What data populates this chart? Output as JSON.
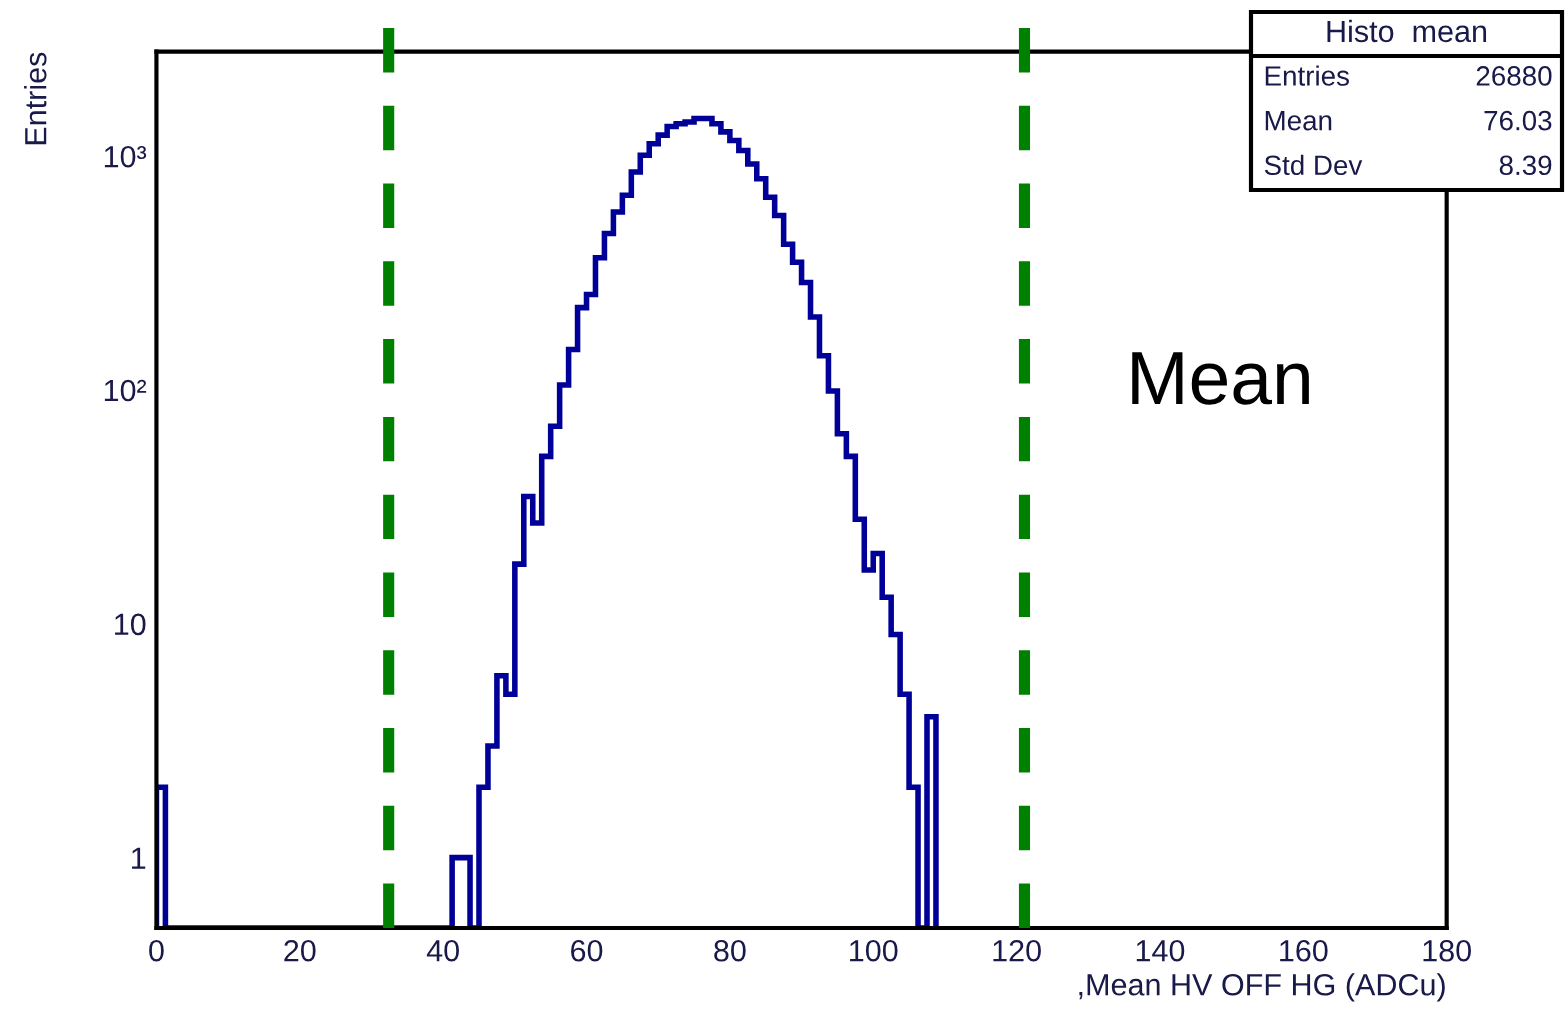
{
  "chart_data": {
    "type": "histogram",
    "xlabel": ",Mean HV OFF HG (ADCu)",
    "ylabel": "Entries",
    "bins": [
      0,
      1.25,
      2.5,
      3.75,
      5,
      6.25,
      7.5,
      8.75,
      10,
      11.25,
      12.5,
      13.75,
      15,
      16.25,
      17.5,
      18.75,
      20,
      21.25,
      22.5,
      23.75,
      25,
      26.25,
      27.5,
      28.75,
      30,
      31.25,
      32.5,
      33.75,
      35,
      36.25,
      37.5,
      38.75,
      40,
      41.25,
      42.5,
      43.75,
      45,
      46.25,
      47.5,
      48.75,
      50,
      51.25,
      52.5,
      53.75,
      55,
      56.25,
      57.5,
      58.75,
      60,
      61.25,
      62.5,
      63.75,
      65,
      66.25,
      67.5,
      68.75,
      70,
      71.25,
      72.5,
      73.75,
      75,
      76.25,
      77.5,
      78.75,
      80,
      81.25,
      82.5,
      83.75,
      85,
      86.25,
      87.5,
      88.75,
      90,
      91.25,
      92.5,
      93.75,
      95,
      96.25,
      97.5,
      98.75,
      100,
      101.25,
      102.5,
      103.75,
      105,
      106.25,
      107.5,
      108.75
    ],
    "values": [
      2,
      null,
      null,
      null,
      null,
      null,
      null,
      null,
      null,
      null,
      null,
      null,
      null,
      null,
      null,
      null,
      null,
      null,
      null,
      null,
      null,
      null,
      null,
      null,
      null,
      null,
      null,
      null,
      null,
      null,
      null,
      null,
      null,
      1,
      1,
      null,
      2,
      3,
      6,
      5,
      18,
      35,
      27,
      52,
      70,
      105,
      149,
      225,
      256,
      368,
      467,
      577,
      680,
      855,
      1010,
      1130,
      1230,
      1340,
      1375,
      1400,
      1450,
      1450,
      1375,
      1270,
      1167,
      1057,
      926,
      801,
      667,
      558,
      420,
      352,
      288,
      205,
      140,
      99,
      65,
      52,
      28,
      17,
      20,
      13,
      9,
      5,
      2,
      null,
      4
    ],
    "color": "#000099",
    "log": "y",
    "xlim": [
      0,
      180
    ],
    "xticks": [
      0,
      20,
      40,
      60,
      80,
      100,
      120,
      140,
      160,
      180
    ],
    "ylim": [
      0.5,
      2800
    ],
    "yticks": [
      1,
      10,
      {
        "value": 100,
        "label": "10²"
      },
      {
        "value": 1000,
        "label": "10³"
      }
    ],
    "grid": false,
    "legend": false,
    "ref_lines": [
      {
        "axis": "x",
        "value": 32.4,
        "label": null,
        "color": "#008000",
        "line_style": "dashed"
      },
      {
        "axis": "x",
        "value": 121.1,
        "label": null,
        "color": "#008000",
        "line_style": "dashed"
      }
    ],
    "annotations": [
      "Histo  mean",
      "Entries",
      "26880",
      "Mean",
      "76.03",
      "Std Dev",
      "8.39",
      "Mean"
    ]
  }
}
